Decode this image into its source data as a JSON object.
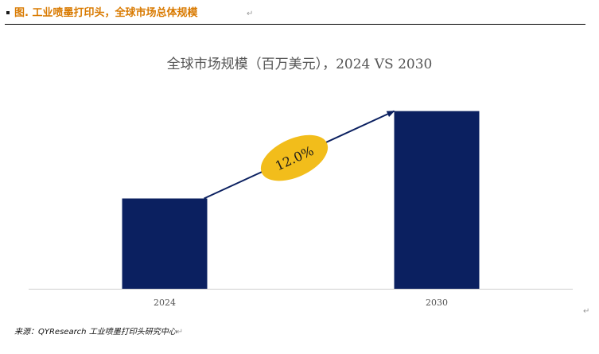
{
  "heading": {
    "prefix": "图.",
    "text": "工业喷墨打印头，全球市场总体规模",
    "prefix_color": "#d97a00",
    "text_color": "#d97a00",
    "paragraph_mark": "↵"
  },
  "source": {
    "text": "来源：QYResearch 工业喷墨打印头研究中心",
    "paragraph_mark": "↵"
  },
  "chart_data": {
    "type": "bar",
    "title": "全球市场规模（百万美元），2024 VS 2030",
    "categories": [
      "2024",
      "2030"
    ],
    "values": [
      31,
      61
    ],
    "ylim": [
      0,
      65
    ],
    "xlabel": "",
    "ylabel": "",
    "grid": false,
    "legend": "none",
    "bar_color": "#0b2060",
    "annotation": {
      "label": "12.0%",
      "shape": "ellipse",
      "fill": "#f2bd1b",
      "arrow": "from 2024 bar top to 2030 bar top",
      "arrow_color": "#0b2060"
    }
  }
}
